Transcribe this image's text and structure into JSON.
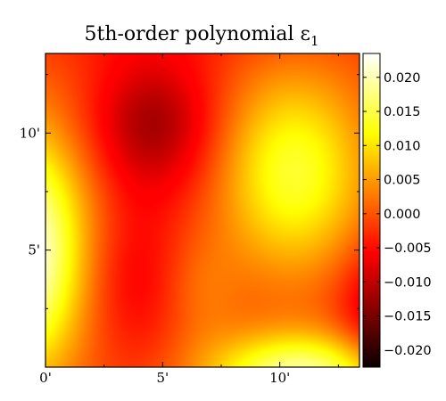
{
  "chart_data": {
    "type": "heatmap",
    "title": "5th-order polynomial ε",
    "title_subscript": "1",
    "xlabel": "",
    "ylabel": "",
    "colormap": "hot",
    "x_ticks": [
      {
        "value": 0,
        "label": "0'"
      },
      {
        "value": 5,
        "label": "5'"
      },
      {
        "value": 10,
        "label": "10'"
      }
    ],
    "y_ticks": [
      {
        "value": 5,
        "label": "5'"
      },
      {
        "value": 10,
        "label": "10'"
      }
    ],
    "xlim": [
      0,
      13.4
    ],
    "ylim": [
      0,
      13.4
    ],
    "colorbar": {
      "vmin": -0.0225,
      "vmax": 0.0235,
      "ticks": [
        {
          "value": 0.02,
          "label": "0.020"
        },
        {
          "value": 0.015,
          "label": "0.015"
        },
        {
          "value": 0.01,
          "label": "0.010"
        },
        {
          "value": 0.005,
          "label": "0.005"
        },
        {
          "value": 0.0,
          "label": "0.000"
        },
        {
          "value": -0.005,
          "label": "−0.005"
        },
        {
          "value": -0.01,
          "label": "−0.010"
        },
        {
          "value": -0.015,
          "label": "−0.015"
        },
        {
          "value": -0.02,
          "label": "−0.020"
        }
      ]
    },
    "features": [
      {
        "x": 0.2,
        "y": 5.0,
        "value": 0.023
      },
      {
        "x": 4.6,
        "y": 10.5,
        "value": -0.014
      },
      {
        "x": 3.5,
        "y": 4.0,
        "value": -0.006
      },
      {
        "x": 10.6,
        "y": 8.3,
        "value": 0.014
      },
      {
        "x": 11.0,
        "y": 0.5,
        "value": 0.018
      },
      {
        "x": 13.3,
        "y": 2.5,
        "value": -0.01
      }
    ]
  }
}
